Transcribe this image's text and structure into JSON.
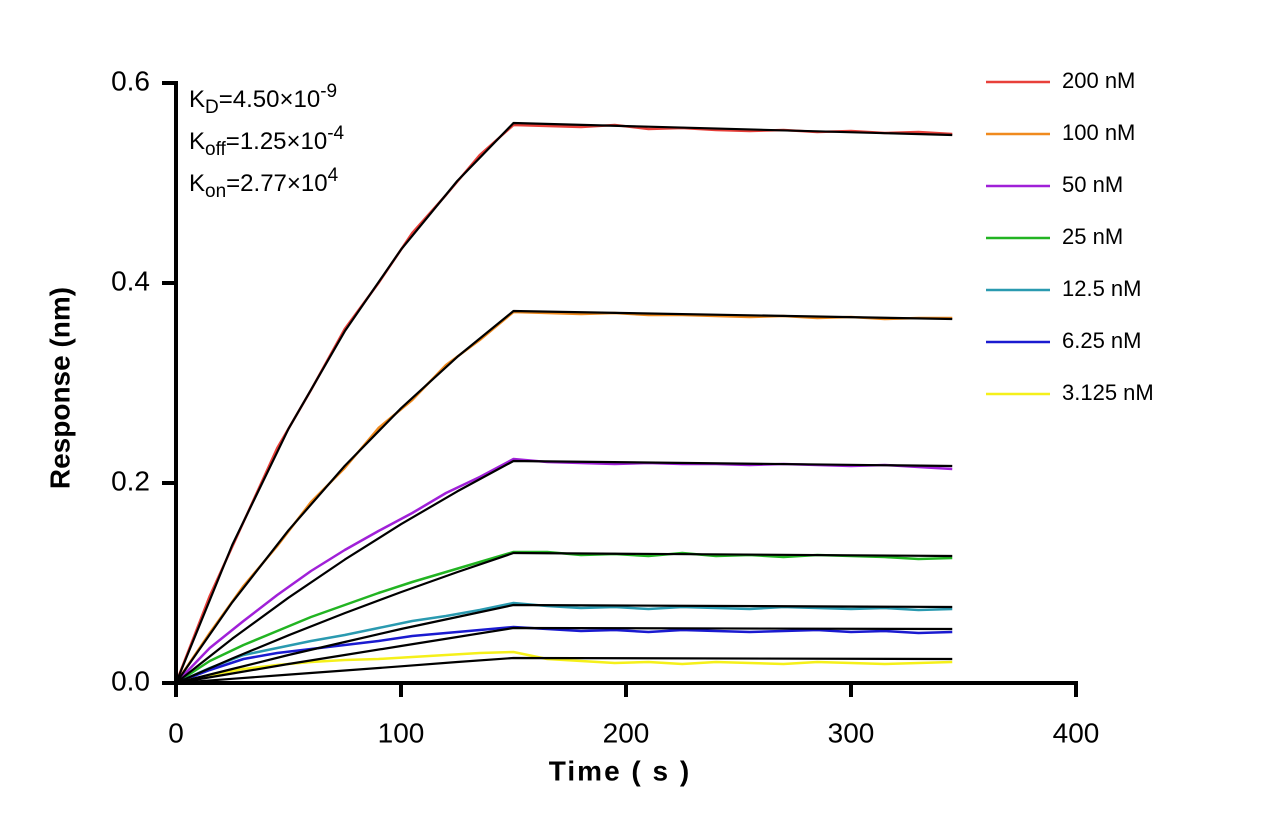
{
  "chart_data": {
    "type": "line",
    "xlabel": "Time ( s )",
    "ylabel": "Response (nm)",
    "xlim": [
      0,
      400
    ],
    "xticks": [
      0,
      100,
      200,
      300,
      400
    ],
    "ylim": [
      0,
      0.6
    ],
    "yticks": [
      {
        "value": 0,
        "label": "0.0"
      },
      0.2,
      0.4,
      0.6
    ],
    "annotations": [
      {
        "base": "K",
        "sub": "D",
        "text": "=4.50×10",
        "sup": "-9"
      },
      {
        "base": "K",
        "sub": "off",
        "text": "=1.25×10",
        "sup": "-4"
      },
      {
        "base": "K",
        "sub": "on",
        "text": "=2.77×10",
        "sup": "4"
      }
    ],
    "series": [
      {
        "name": "200 nM",
        "color": "#e8403a",
        "x": [
          0,
          15,
          30,
          45,
          60,
          75,
          90,
          105,
          120,
          135,
          150,
          165,
          180,
          195,
          210,
          225,
          240,
          255,
          270,
          285,
          300,
          315,
          330,
          345
        ],
        "values": [
          0,
          0.087,
          0.161,
          0.235,
          0.293,
          0.354,
          0.4,
          0.45,
          0.488,
          0.528,
          0.558,
          0.557,
          0.556,
          0.558,
          0.554,
          0.555,
          0.553,
          0.552,
          0.553,
          0.551,
          0.552,
          0.55,
          0.551,
          0.549
        ]
      },
      {
        "name": "100 nM",
        "color": "#f08a1e",
        "x": [
          0,
          15,
          30,
          45,
          60,
          75,
          90,
          105,
          120,
          135,
          150,
          165,
          180,
          195,
          210,
          225,
          240,
          255,
          270,
          285,
          300,
          315,
          330,
          345
        ],
        "values": [
          0,
          0.05,
          0.097,
          0.137,
          0.181,
          0.215,
          0.255,
          0.283,
          0.318,
          0.343,
          0.371,
          0.37,
          0.369,
          0.37,
          0.368,
          0.368,
          0.367,
          0.366,
          0.367,
          0.365,
          0.366,
          0.364,
          0.365,
          0.365
        ]
      },
      {
        "name": "50 nM",
        "color": "#a020d8",
        "x": [
          0,
          15,
          30,
          45,
          60,
          75,
          90,
          105,
          120,
          135,
          150,
          165,
          180,
          195,
          210,
          225,
          240,
          255,
          270,
          285,
          300,
          315,
          330,
          345
        ],
        "values": [
          0,
          0.035,
          0.062,
          0.088,
          0.112,
          0.133,
          0.152,
          0.17,
          0.19,
          0.206,
          0.224,
          0.221,
          0.22,
          0.219,
          0.22,
          0.219,
          0.219,
          0.218,
          0.219,
          0.218,
          0.217,
          0.218,
          0.216,
          0.214
        ]
      },
      {
        "name": "25 nM",
        "color": "#22b422",
        "x": [
          0,
          15,
          30,
          45,
          60,
          75,
          90,
          105,
          120,
          135,
          150,
          165,
          180,
          195,
          210,
          225,
          240,
          255,
          270,
          285,
          300,
          315,
          330,
          345
        ],
        "values": [
          0,
          0.022,
          0.038,
          0.052,
          0.066,
          0.078,
          0.09,
          0.101,
          0.111,
          0.121,
          0.131,
          0.131,
          0.128,
          0.129,
          0.127,
          0.13,
          0.127,
          0.128,
          0.126,
          0.128,
          0.127,
          0.126,
          0.124,
          0.125
        ]
      },
      {
        "name": "12.5 nM",
        "color": "#2a9ab0",
        "x": [
          0,
          15,
          30,
          45,
          60,
          75,
          90,
          105,
          120,
          135,
          150,
          165,
          180,
          195,
          210,
          225,
          240,
          255,
          270,
          285,
          300,
          315,
          330,
          345
        ],
        "values": [
          0,
          0.015,
          0.028,
          0.035,
          0.042,
          0.048,
          0.055,
          0.062,
          0.067,
          0.073,
          0.08,
          0.077,
          0.075,
          0.076,
          0.074,
          0.076,
          0.075,
          0.074,
          0.076,
          0.075,
          0.074,
          0.075,
          0.073,
          0.074
        ]
      },
      {
        "name": "6.25 nM",
        "color": "#1a1ad0",
        "x": [
          0,
          15,
          30,
          45,
          60,
          75,
          90,
          105,
          120,
          135,
          150,
          165,
          180,
          195,
          210,
          225,
          240,
          255,
          270,
          285,
          300,
          315,
          330,
          345
        ],
        "values": [
          0,
          0.013,
          0.024,
          0.03,
          0.034,
          0.038,
          0.042,
          0.047,
          0.05,
          0.053,
          0.056,
          0.054,
          0.052,
          0.053,
          0.051,
          0.053,
          0.052,
          0.051,
          0.052,
          0.053,
          0.051,
          0.052,
          0.05,
          0.051
        ]
      },
      {
        "name": "3.125 nM",
        "color": "#f5f01a",
        "x": [
          0,
          15,
          30,
          45,
          60,
          75,
          90,
          105,
          120,
          135,
          150,
          165,
          180,
          195,
          210,
          225,
          240,
          255,
          270,
          285,
          300,
          315,
          330,
          345
        ],
        "values": [
          0,
          0.008,
          0.014,
          0.018,
          0.021,
          0.023,
          0.024,
          0.026,
          0.028,
          0.03,
          0.031,
          0.024,
          0.022,
          0.02,
          0.021,
          0.019,
          0.021,
          0.02,
          0.019,
          0.021,
          0.02,
          0.019,
          0.02,
          0.021
        ]
      },
      {
        "color": "#000000",
        "x": [
          0,
          25,
          50,
          75,
          100,
          125,
          150,
          345
        ],
        "values": [
          0,
          0.138,
          0.2542,
          0.3517,
          0.4334,
          0.502,
          0.56,
          0.548
        ]
      },
      {
        "color": "#000000",
        "x": [
          0,
          25,
          50,
          75,
          100,
          125,
          150,
          345
        ],
        "values": [
          0,
          0.0807,
          0.1527,
          0.2171,
          0.2747,
          0.3261,
          0.372,
          0.364
        ]
      },
      {
        "color": "#000000",
        "x": [
          0,
          25,
          50,
          75,
          100,
          125,
          150,
          345
        ],
        "values": [
          0,
          0.0443,
          0.0853,
          0.1234,
          0.1588,
          0.1916,
          0.222,
          0.217
        ]
      },
      {
        "color": "#000000",
        "x": [
          0,
          25,
          50,
          75,
          100,
          125,
          150,
          345
        ],
        "values": [
          0,
          0.0245,
          0.0477,
          0.0699,
          0.0909,
          0.1109,
          0.13,
          0.127
        ]
      },
      {
        "color": "#000000",
        "x": [
          0,
          25,
          50,
          75,
          100,
          125,
          150,
          345
        ],
        "values": [
          0,
          0.014,
          0.028,
          0.041,
          0.054,
          0.066,
          0.078,
          0.076
        ]
      },
      {
        "color": "#000000",
        "x": [
          0,
          25,
          50,
          75,
          100,
          125,
          150,
          345
        ],
        "values": [
          0,
          0.0095,
          0.019,
          0.028,
          0.037,
          0.046,
          0.055,
          0.054
        ]
      },
      {
        "color": "#000000",
        "x": [
          0,
          25,
          50,
          75,
          100,
          125,
          150,
          345
        ],
        "values": [
          0,
          0.0042,
          0.0084,
          0.0125,
          0.0167,
          0.021,
          0.025,
          0.024
        ]
      }
    ]
  }
}
